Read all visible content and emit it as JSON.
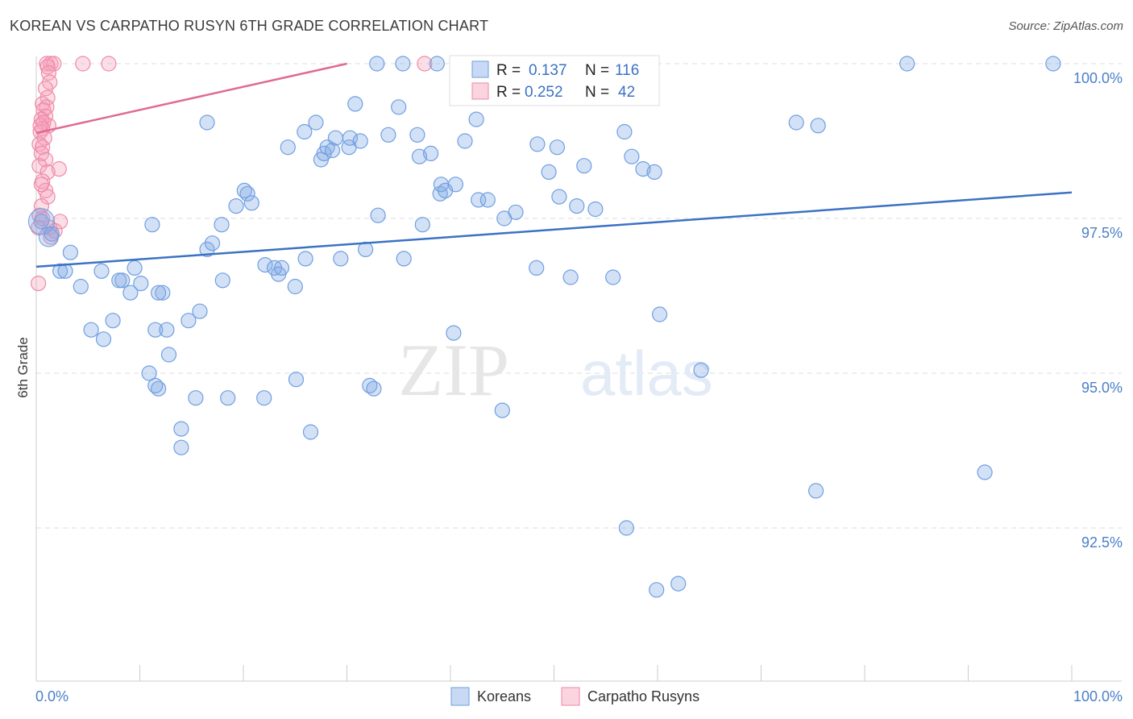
{
  "title": "KOREAN VS CARPATHO RUSYN 6TH GRADE CORRELATION CHART",
  "source": "Source: ZipAtlas.com",
  "watermark": {
    "zip": "ZIP",
    "atlas": "atlas"
  },
  "colors": {
    "blue": "#6f9fe0",
    "blue_fill": "rgba(130,170,230,0.35)",
    "blue_line": "#3b72c4",
    "pink": "#ee8aa8",
    "pink_fill": "rgba(245,160,185,0.35)",
    "pink_line": "#e06a92",
    "grid": "#dddddd",
    "tick_text": "#4a7fc8"
  },
  "legend": {
    "row1": {
      "r_label": "R =",
      "r_value": "0.137",
      "n_label": "N =",
      "n_value": "116"
    },
    "row2": {
      "r_label": "R =",
      "r_value": "0.252",
      "n_label": "N =",
      "n_value": "42"
    }
  },
  "bottom_legend": [
    "Koreans",
    "Carpatho Rusyns"
  ],
  "chart_data": {
    "type": "scatter",
    "title": "KOREAN VS CARPATHO RUSYN 6TH GRADE CORRELATION CHART",
    "xlabel": "",
    "ylabel": "6th Grade",
    "xlim": [
      0,
      100
    ],
    "ylim": [
      90.0,
      100.2
    ],
    "x_tick_labels": [
      "0.0%",
      "100.0%"
    ],
    "y_ticks": [
      92.5,
      95.0,
      97.5,
      100.0
    ],
    "y_tick_labels": [
      "92.5%",
      "95.0%",
      "97.5%",
      "100.0%"
    ],
    "series": [
      {
        "name": "Koreans",
        "r": 0.137,
        "n": 116,
        "trend": {
          "x": [
            0,
            100
          ],
          "y": [
            96.72,
            97.92
          ]
        },
        "points": [
          [
            0.5,
            97.45
          ],
          [
            1.5,
            97.25
          ],
          [
            3.3,
            96.95
          ],
          [
            2.3,
            96.65
          ],
          [
            2.8,
            96.65
          ],
          [
            4.3,
            96.4
          ],
          [
            6.3,
            96.65
          ],
          [
            8.3,
            96.5
          ],
          [
            9.1,
            96.3
          ],
          [
            8.0,
            96.5
          ],
          [
            5.3,
            95.7
          ],
          [
            6.5,
            95.55
          ],
          [
            7.4,
            95.85
          ],
          [
            9.5,
            96.7
          ],
          [
            10.1,
            96.45
          ],
          [
            11.2,
            97.4
          ],
          [
            10.9,
            95.0
          ],
          [
            11.8,
            94.75
          ],
          [
            11.5,
            94.8
          ],
          [
            12.2,
            96.3
          ],
          [
            11.5,
            95.7
          ],
          [
            11.8,
            96.3
          ],
          [
            12.6,
            95.7
          ],
          [
            12.8,
            95.3
          ],
          [
            14.7,
            95.85
          ],
          [
            15.4,
            94.6
          ],
          [
            14.0,
            94.1
          ],
          [
            14.0,
            93.8
          ],
          [
            15.8,
            96.0
          ],
          [
            16.5,
            97.0
          ],
          [
            16.5,
            99.05
          ],
          [
            17.0,
            97.1
          ],
          [
            17.9,
            97.4
          ],
          [
            18.0,
            96.5
          ],
          [
            18.5,
            94.6
          ],
          [
            19.3,
            97.7
          ],
          [
            20.1,
            97.95
          ],
          [
            20.4,
            97.9
          ],
          [
            20.8,
            97.75
          ],
          [
            22.1,
            96.75
          ],
          [
            22.0,
            94.6
          ],
          [
            23.0,
            96.7
          ],
          [
            23.4,
            96.6
          ],
          [
            23.7,
            96.7
          ],
          [
            24.3,
            98.65
          ],
          [
            25.1,
            94.9
          ],
          [
            25.0,
            96.4
          ],
          [
            25.9,
            98.9
          ],
          [
            26.0,
            96.85
          ],
          [
            27.0,
            99.05
          ],
          [
            26.5,
            94.05
          ],
          [
            27.5,
            98.45
          ],
          [
            27.8,
            98.55
          ],
          [
            28.1,
            98.65
          ],
          [
            28.6,
            98.6
          ],
          [
            28.9,
            98.8
          ],
          [
            29.4,
            96.85
          ],
          [
            30.2,
            98.65
          ],
          [
            30.3,
            98.8
          ],
          [
            30.8,
            99.35
          ],
          [
            31.3,
            98.75
          ],
          [
            31.8,
            97.0
          ],
          [
            32.2,
            94.8
          ],
          [
            32.6,
            94.75
          ],
          [
            32.9,
            100.0
          ],
          [
            33.0,
            97.55
          ],
          [
            34.0,
            98.85
          ],
          [
            35.0,
            99.3
          ],
          [
            35.4,
            100.0
          ],
          [
            35.5,
            96.85
          ],
          [
            36.8,
            98.85
          ],
          [
            37.0,
            98.5
          ],
          [
            37.3,
            97.4
          ],
          [
            38.1,
            98.55
          ],
          [
            38.7,
            100.0
          ],
          [
            39.0,
            97.9
          ],
          [
            39.1,
            98.05
          ],
          [
            39.5,
            97.95
          ],
          [
            40.5,
            98.05
          ],
          [
            40.3,
            95.65
          ],
          [
            40.9,
            100.0
          ],
          [
            41.4,
            98.75
          ],
          [
            42.5,
            99.1
          ],
          [
            42.7,
            97.8
          ],
          [
            43.6,
            97.8
          ],
          [
            45.2,
            97.5
          ],
          [
            45.0,
            94.4
          ],
          [
            46.3,
            97.6
          ],
          [
            47.1,
            99.65
          ],
          [
            48.3,
            96.7
          ],
          [
            48.4,
            98.7
          ],
          [
            49.5,
            98.25
          ],
          [
            50.3,
            98.65
          ],
          [
            50.5,
            97.85
          ],
          [
            51.6,
            96.55
          ],
          [
            52.2,
            97.7
          ],
          [
            52.9,
            98.35
          ],
          [
            54.0,
            97.65
          ],
          [
            54.2,
            100.0
          ],
          [
            55.7,
            96.55
          ],
          [
            56.8,
            98.9
          ],
          [
            57.0,
            92.5
          ],
          [
            57.5,
            98.5
          ],
          [
            58.6,
            98.3
          ],
          [
            59.7,
            98.25
          ],
          [
            60.2,
            95.95
          ],
          [
            59.9,
            91.5
          ],
          [
            62.0,
            91.6
          ],
          [
            64.2,
            95.05
          ],
          [
            73.4,
            99.05
          ],
          [
            75.5,
            99.0
          ],
          [
            75.3,
            93.1
          ],
          [
            84.1,
            100.0
          ],
          [
            91.6,
            93.4
          ],
          [
            98.2,
            100.0
          ]
        ]
      },
      {
        "name": "Carpatho Rusyns",
        "r": 0.252,
        "n": 42,
        "trend": {
          "x": [
            0,
            30
          ],
          "y": [
            98.88,
            100.0
          ]
        },
        "points": [
          [
            1.0,
            100.0
          ],
          [
            1.4,
            100.0
          ],
          [
            1.7,
            100.0
          ],
          [
            4.5,
            100.0
          ],
          [
            7.0,
            100.0
          ],
          [
            1.1,
            99.95
          ],
          [
            1.2,
            99.85
          ],
          [
            1.3,
            99.7
          ],
          [
            0.9,
            99.6
          ],
          [
            1.1,
            99.45
          ],
          [
            0.6,
            99.35
          ],
          [
            1.0,
            99.3
          ],
          [
            0.7,
            99.25
          ],
          [
            0.9,
            99.15
          ],
          [
            0.5,
            99.1
          ],
          [
            0.7,
            99.05
          ],
          [
            1.2,
            99.0
          ],
          [
            0.6,
            98.95
          ],
          [
            0.4,
            98.9
          ],
          [
            0.8,
            98.8
          ],
          [
            0.3,
            98.7
          ],
          [
            0.6,
            98.65
          ],
          [
            0.5,
            98.55
          ],
          [
            0.9,
            98.45
          ],
          [
            0.3,
            98.35
          ],
          [
            2.2,
            98.3
          ],
          [
            1.1,
            98.25
          ],
          [
            0.6,
            98.1
          ],
          [
            0.9,
            97.95
          ],
          [
            1.1,
            97.85
          ],
          [
            0.5,
            97.7
          ],
          [
            0.3,
            97.55
          ],
          [
            0.6,
            97.5
          ],
          [
            2.3,
            97.45
          ],
          [
            1.3,
            97.35
          ],
          [
            1.8,
            97.3
          ],
          [
            1.4,
            97.2
          ],
          [
            0.2,
            96.45
          ],
          [
            37.5,
            100.0
          ],
          [
            0.2,
            97.35
          ],
          [
            0.5,
            98.05
          ],
          [
            0.4,
            99.0
          ]
        ]
      }
    ]
  }
}
